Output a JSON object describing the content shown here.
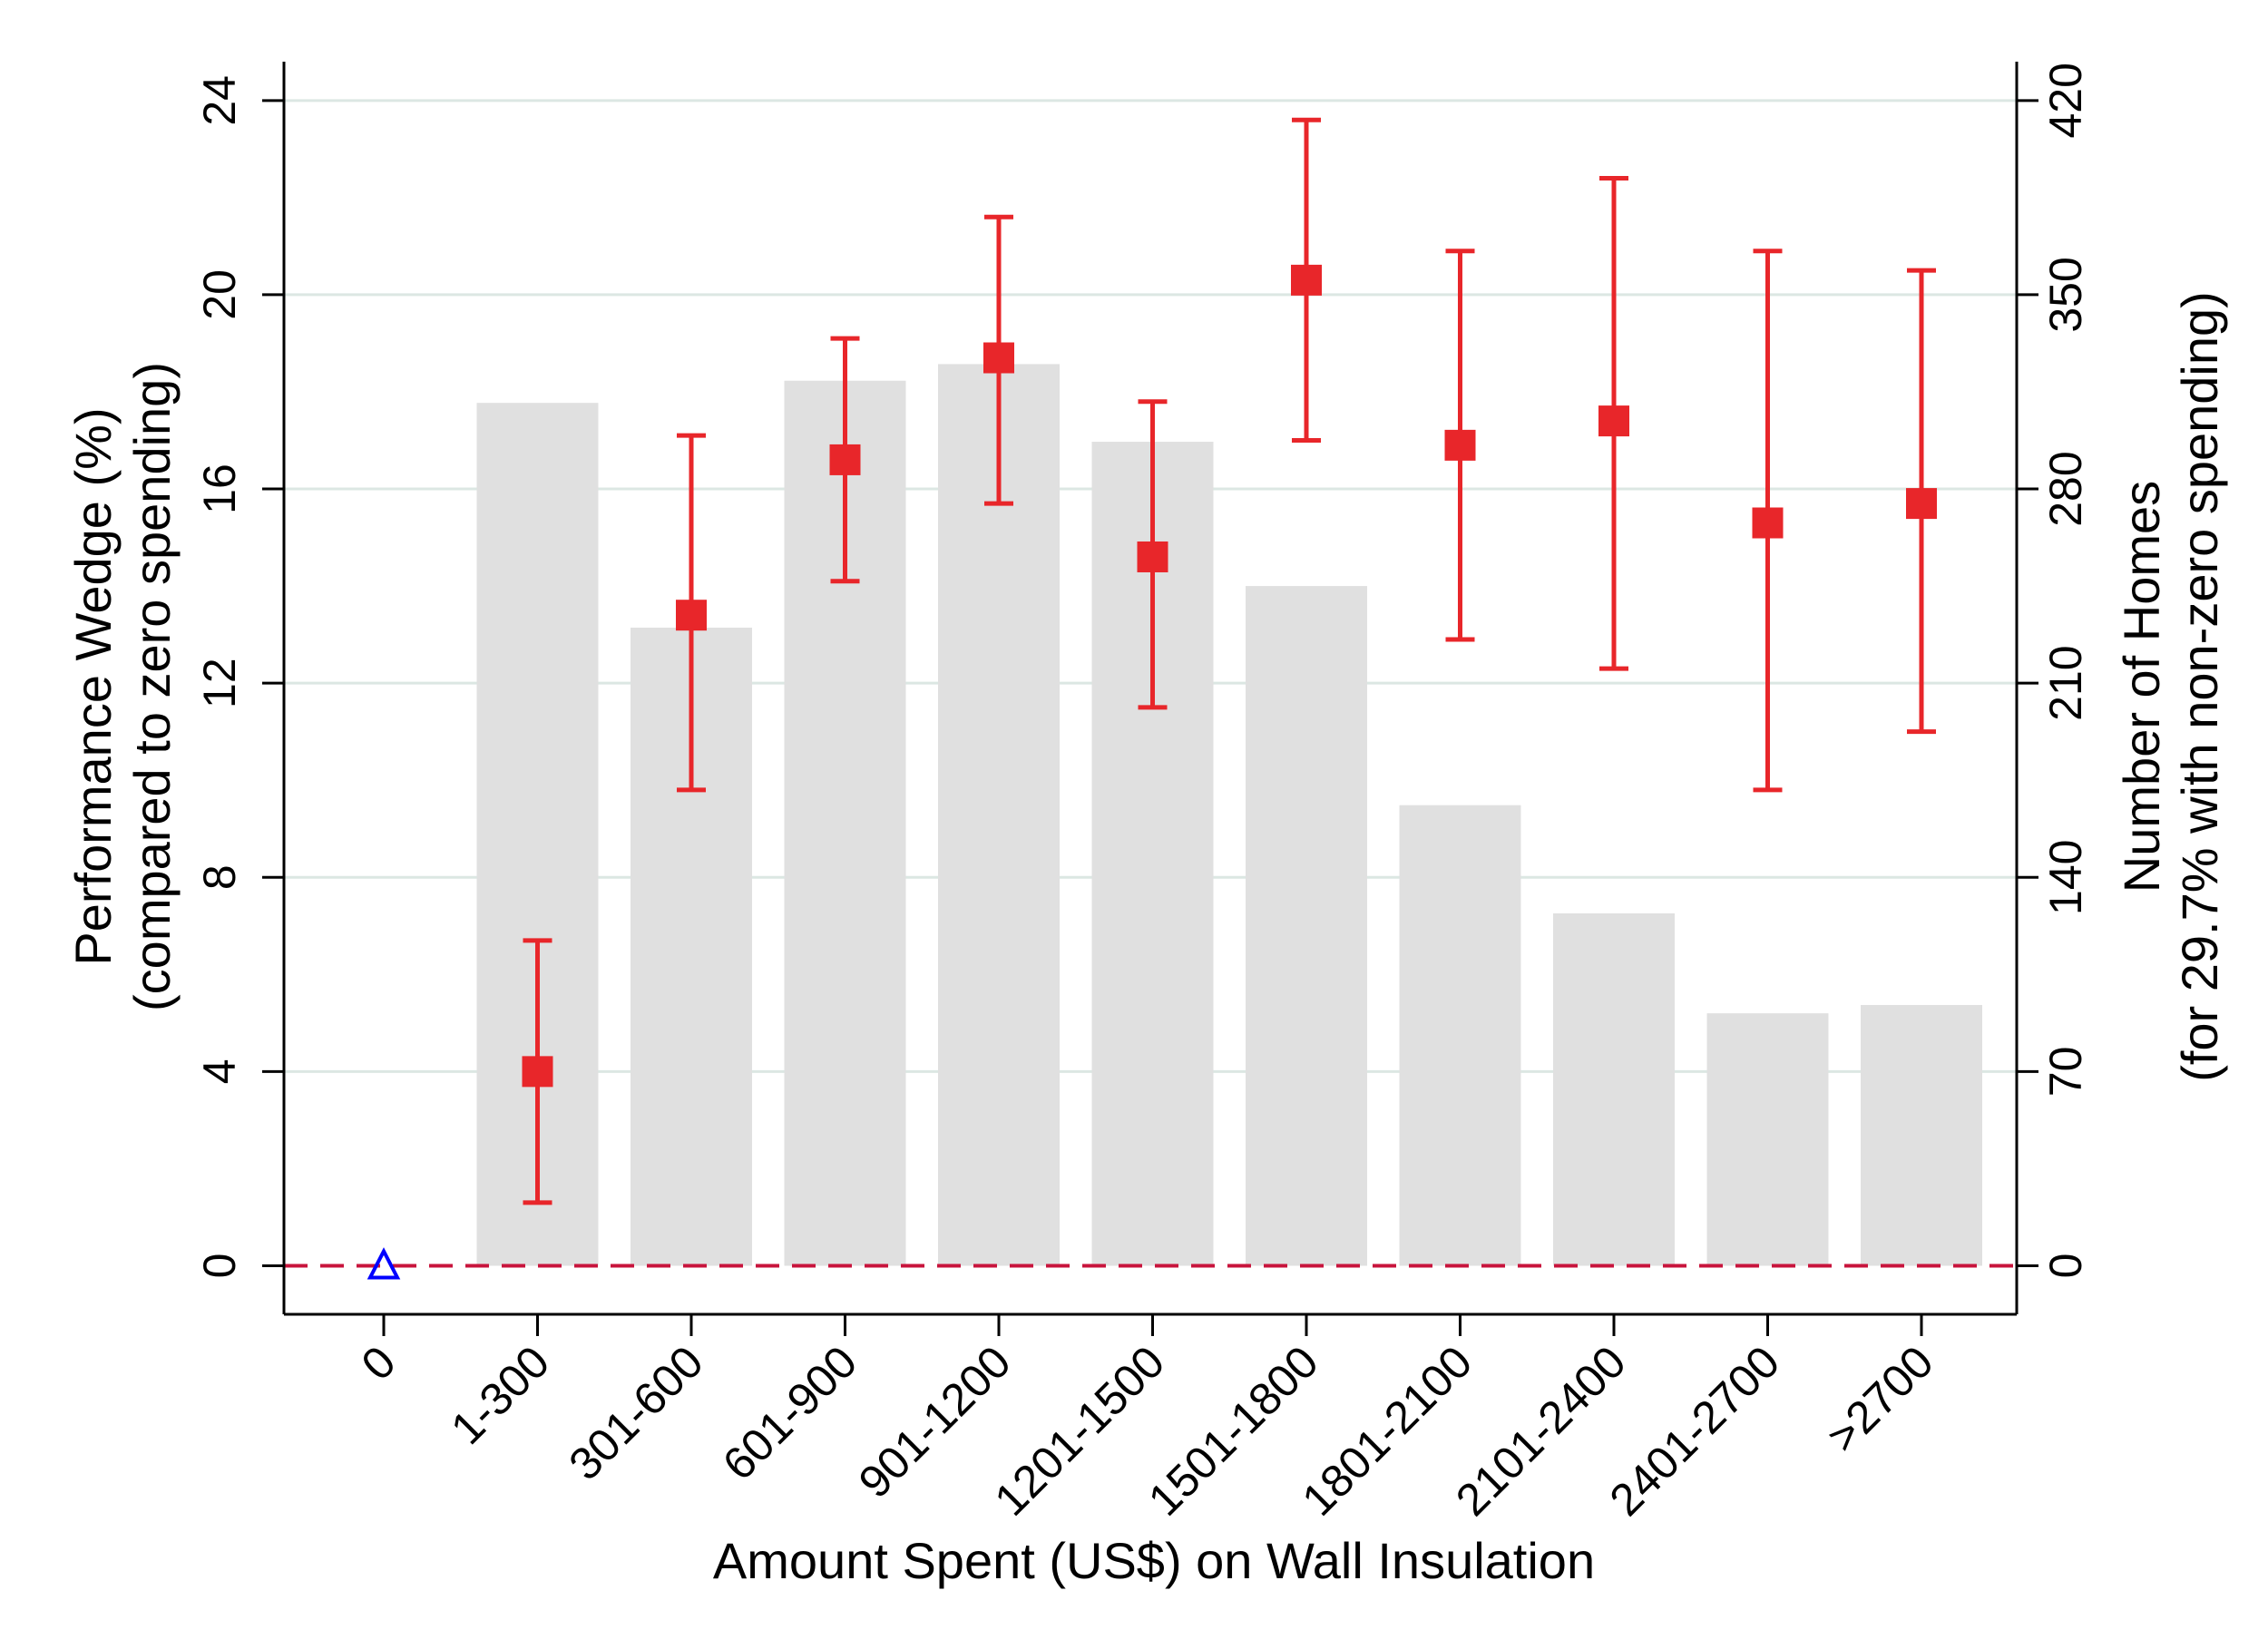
{
  "chart_data": {
    "type": "bar",
    "categories": [
      "0",
      "1-300",
      "301-600",
      "601-900",
      "901-1200",
      "1201-1500",
      "1501-1800",
      "1801-2100",
      "2101-2400",
      "2401-2700",
      ">2700"
    ],
    "xlabel": "Amount Spent (US$) on Wall Insulation",
    "ylabel_left": {
      "line1": "Performance Wedge (%)",
      "line2": "(compared to zero spending)"
    },
    "ylabel_right": {
      "line1": "Number of Homes",
      "line2": "(for 29.7% with non-zero spending)"
    },
    "y_left": {
      "min": -1,
      "max": 24.8,
      "ticks": [
        0,
        4,
        8,
        12,
        16,
        20,
        24
      ]
    },
    "y_right": {
      "ticks": [
        0,
        70,
        140,
        210,
        280,
        350,
        420
      ],
      "units_per_left_unit": 17.5
    },
    "series": [
      {
        "kind": "bar",
        "axis": "right",
        "color": "#e0e0e0",
        "values": [
          null,
          311,
          230,
          319,
          325,
          297,
          245,
          166,
          127,
          91,
          94
        ]
      },
      {
        "kind": "point-errorbar",
        "axis": "left",
        "color": "#e8262a",
        "values": [
          null,
          4.0,
          13.4,
          16.6,
          18.7,
          14.6,
          20.3,
          16.9,
          17.4,
          15.3,
          15.7
        ],
        "ci_low": [
          null,
          1.3,
          9.8,
          14.1,
          15.7,
          11.5,
          17.0,
          12.9,
          12.3,
          9.8,
          11.0
        ],
        "ci_high": [
          null,
          6.7,
          17.1,
          19.1,
          21.6,
          17.8,
          23.6,
          20.9,
          22.4,
          20.9,
          20.5
        ]
      },
      {
        "kind": "reference-marker",
        "axis": "left",
        "color": "#0000ff",
        "marker": "triangle-open",
        "values": [
          0,
          null,
          null,
          null,
          null,
          null,
          null,
          null,
          null,
          null,
          null
        ]
      }
    ],
    "reference_line": {
      "y": 0,
      "style": "dashed",
      "color": "#c8143c"
    },
    "grid": true
  }
}
